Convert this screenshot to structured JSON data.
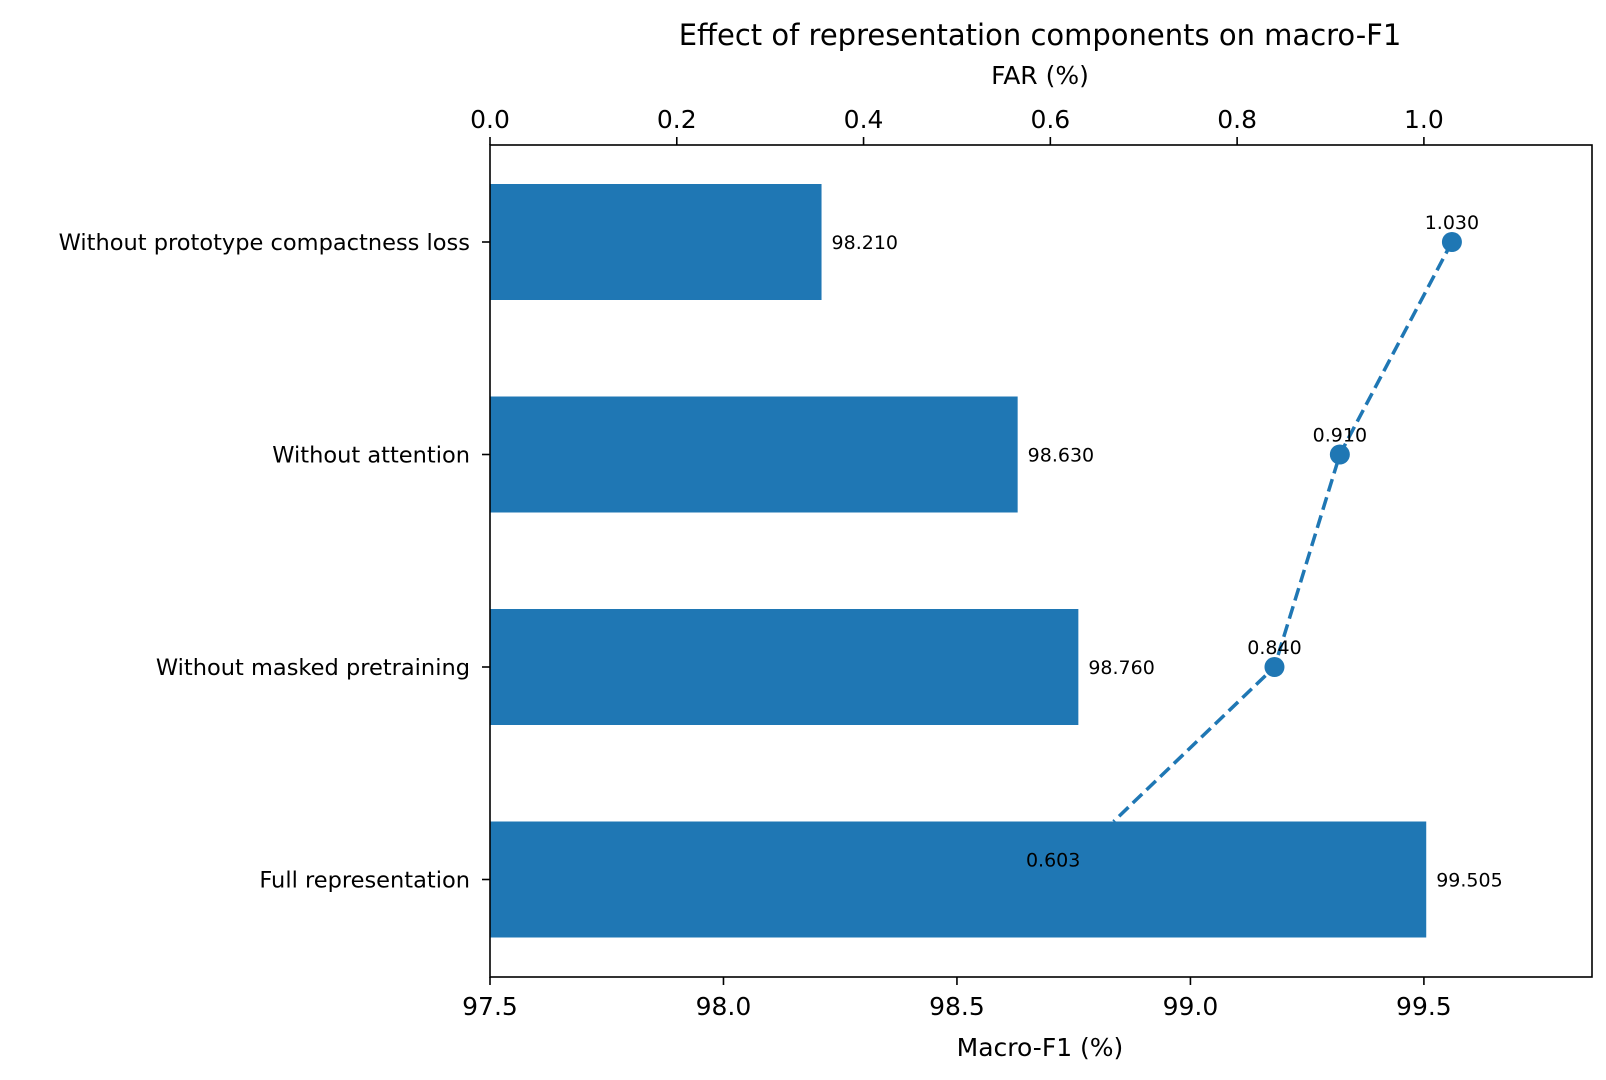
{
  "chart_data": {
    "type": "bar",
    "orientation": "horizontal",
    "title": "Effect of representation components on macro-F1",
    "categories": [
      "Without prototype compactness loss",
      "Without attention",
      "Without masked pretraining",
      "Full representation"
    ],
    "series": [
      {
        "type": "bar",
        "axis": "bottom",
        "values": [
          98.21,
          98.63,
          98.76,
          99.505
        ],
        "value_labels": [
          "98.210",
          "98.630",
          "98.760",
          "99.505"
        ]
      },
      {
        "type": "line",
        "style": "dashed",
        "marker": "circle",
        "axis": "top",
        "values": [
          1.03,
          0.91,
          0.84,
          0.603
        ],
        "value_labels": [
          "1.030",
          "0.910",
          "0.840",
          "0.603"
        ]
      }
    ],
    "xlabel": "Macro-F1 (%)",
    "xlim": [
      97.5,
      99.86
    ],
    "xticks": [
      "97.5",
      "98.0",
      "98.5",
      "99.0",
      "99.5"
    ],
    "x2label": "FAR (%)",
    "x2lim": [
      0.0,
      1.18
    ],
    "x2ticks": [
      "0.0",
      "0.2",
      "0.4",
      "0.6",
      "0.8",
      "1.0"
    ],
    "grid": false,
    "colors": {
      "bar": "#1f77b4",
      "line": "#1f77b4",
      "axis": "#000000",
      "text": "#000000"
    }
  }
}
